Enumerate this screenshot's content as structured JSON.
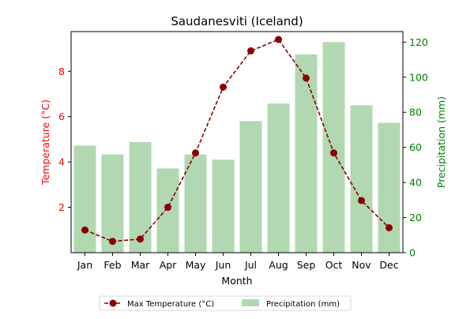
{
  "chart_data": {
    "type": "bar+line",
    "title": "Saudanesviti (Iceland)",
    "xlabel": "Month",
    "y_left_label": "Temperature (°C)",
    "y_right_label": "Precipitation (mm)",
    "categories": [
      "Jan",
      "Feb",
      "Mar",
      "Apr",
      "May",
      "Jun",
      "Jul",
      "Aug",
      "Sep",
      "Oct",
      "Nov",
      "Dec"
    ],
    "y_left_range": [
      0.0,
      9.75
    ],
    "y_left_ticks": [
      2,
      4,
      6,
      8
    ],
    "y_right_range": [
      0,
      126
    ],
    "y_right_ticks": [
      0,
      20,
      40,
      60,
      80,
      100,
      120
    ],
    "series": [
      {
        "name": "Max Temperature (°C)",
        "kind": "line",
        "axis": "left",
        "color": "#8b0000",
        "values": [
          1.0,
          0.5,
          0.6,
          2.0,
          4.4,
          7.3,
          8.9,
          9.4,
          7.7,
          4.4,
          2.3,
          1.1
        ]
      },
      {
        "name": "Precipitation (mm)",
        "kind": "bar",
        "axis": "right",
        "color": "#b2d8b2",
        "values": [
          61,
          56,
          63,
          48,
          56,
          53,
          75,
          85,
          113,
          120,
          84,
          74
        ]
      }
    ],
    "legend_position": "bottom-center",
    "grid": false,
    "colors": {
      "left_axis": "#ff0000",
      "right_axis": "#008000",
      "text": "#000000"
    }
  }
}
